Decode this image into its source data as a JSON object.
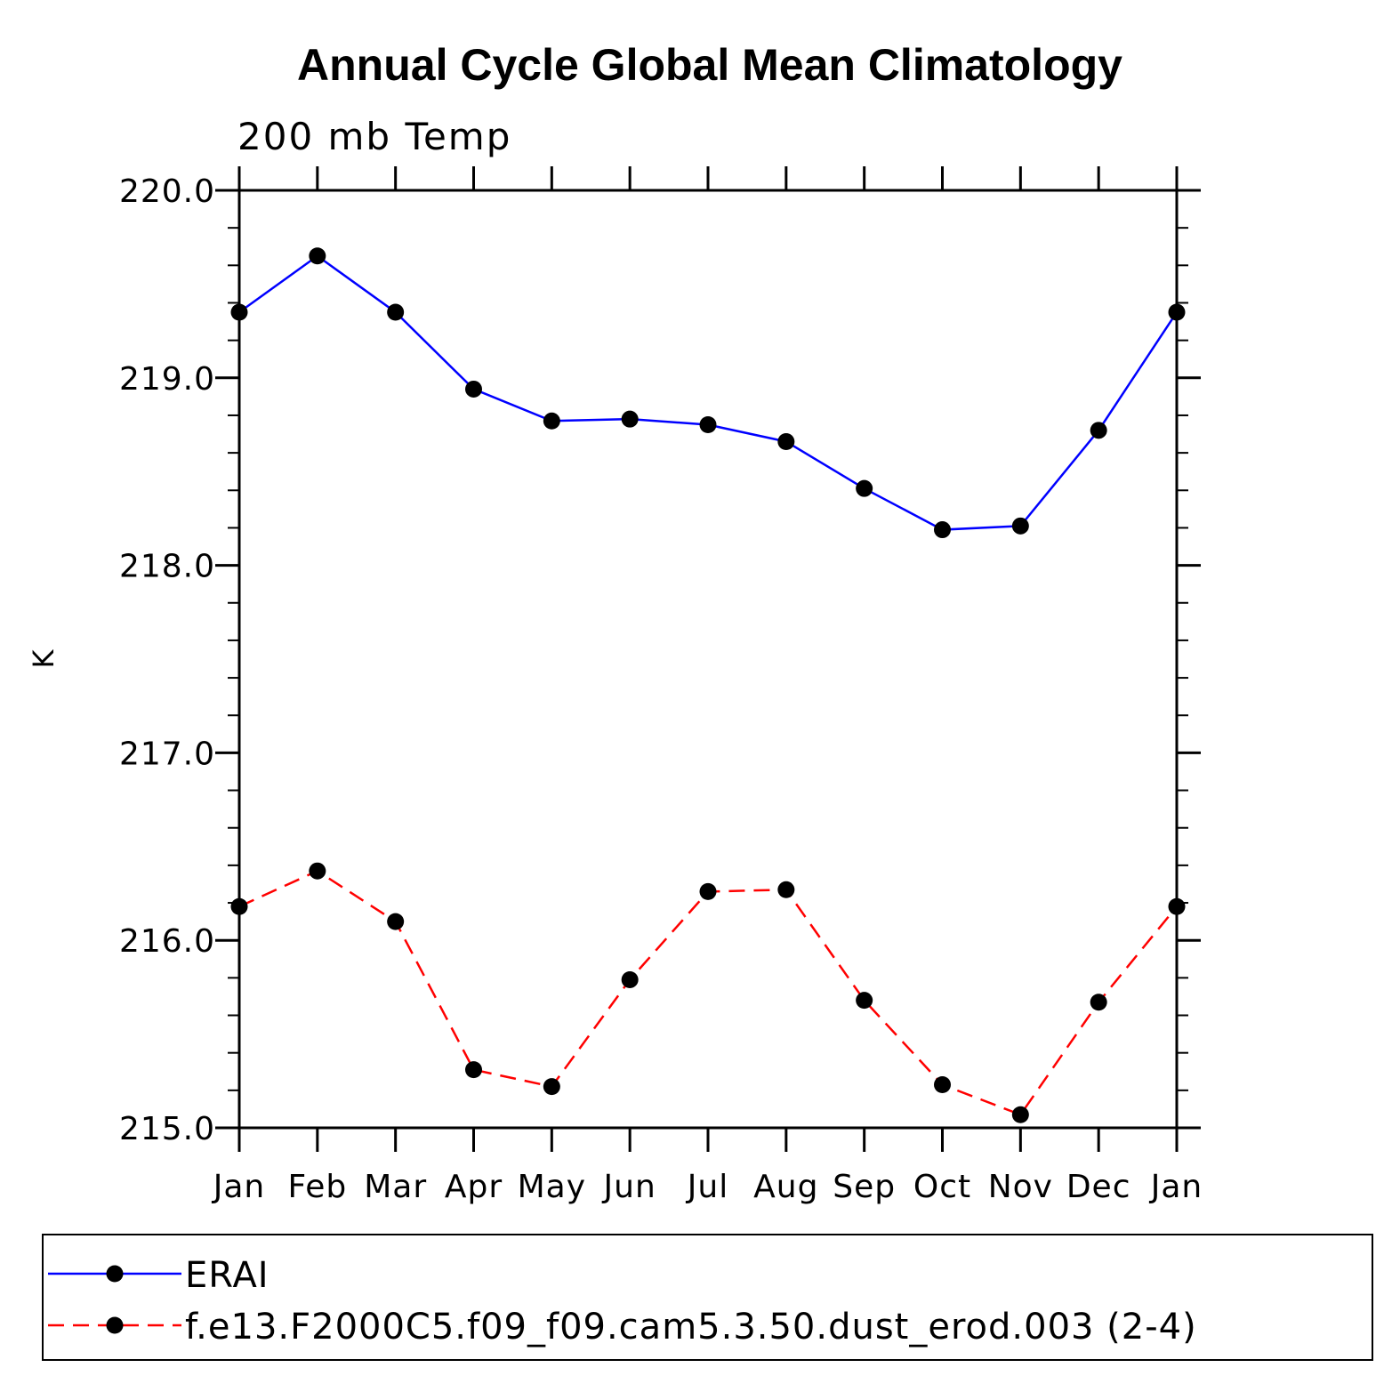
{
  "chart_data": {
    "type": "line",
    "title": "Annual Cycle Global Mean Climatology",
    "subtitle": "200 mb Temp",
    "ylabel": "K",
    "xlabel": "",
    "categories": [
      "Jan",
      "Feb",
      "Mar",
      "Apr",
      "May",
      "Jun",
      "Jul",
      "Aug",
      "Sep",
      "Oct",
      "Nov",
      "Dec",
      "Jan"
    ],
    "ylim": [
      215.0,
      220.0
    ],
    "yticks": [
      "215.0",
      "216.0",
      "217.0",
      "218.0",
      "219.0",
      "220.0"
    ],
    "grid": false,
    "legend_position": "bottom",
    "series": [
      {
        "name": "ERAI",
        "color": "#0000ff",
        "dash": "solid",
        "values": [
          219.35,
          219.65,
          219.35,
          218.94,
          218.77,
          218.78,
          218.75,
          218.66,
          218.41,
          218.19,
          218.21,
          218.72,
          219.35
        ]
      },
      {
        "name": "f.e13.F2000C5.f09_f09.cam5.3.50.dust_erod.003 (2-4)",
        "color": "#ff0000",
        "dash": "dashed",
        "values": [
          216.18,
          216.37,
          216.1,
          215.31,
          215.22,
          215.79,
          216.26,
          216.27,
          215.68,
          215.23,
          215.07,
          215.67,
          216.18
        ]
      }
    ]
  }
}
